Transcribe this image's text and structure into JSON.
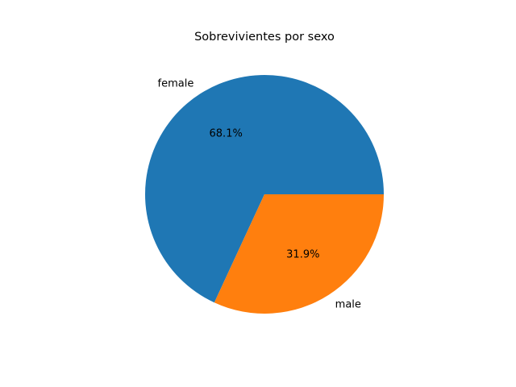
{
  "chart_data": {
    "type": "pie",
    "title": "Sobrevivientes por sexo",
    "slices": [
      {
        "label": "female",
        "value": 68.1,
        "pct_label": "68.1%",
        "color": "#1f77b4"
      },
      {
        "label": "male",
        "value": 31.9,
        "pct_label": "31.9%",
        "color": "#ff7f0e"
      }
    ],
    "start_angle_deg": 0,
    "direction": "counterclockwise",
    "legend": "none"
  }
}
